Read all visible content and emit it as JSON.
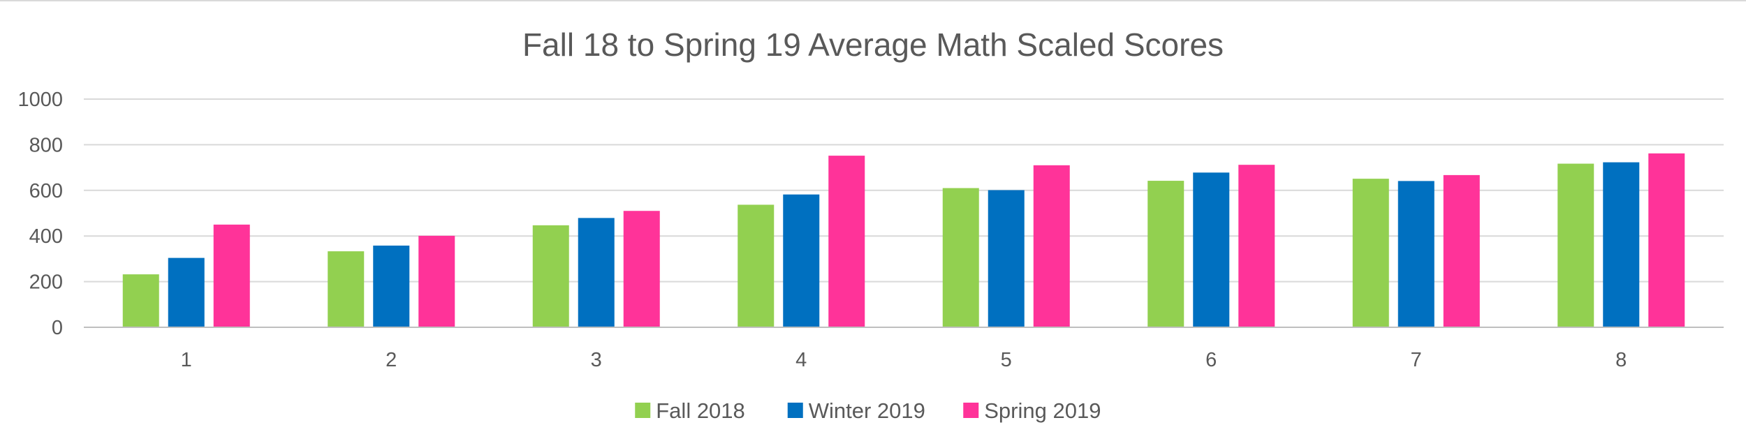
{
  "chart_data": {
    "type": "bar",
    "title": "Fall 18 to Spring 19 Average Math Scaled Scores",
    "xlabel": "",
    "ylabel": "",
    "categories": [
      "1",
      "2",
      "3",
      "4",
      "5",
      "6",
      "7",
      "8"
    ],
    "y_ticks": [
      "0",
      "200",
      "400",
      "600",
      "800",
      "1000"
    ],
    "ylim": [
      0,
      1000
    ],
    "grid": true,
    "legend_position": "bottom",
    "series": [
      {
        "name": "Fall 2018",
        "color": "#92d050",
        "values": [
          232,
          333,
          447,
          537,
          610,
          642,
          651,
          717
        ]
      },
      {
        "name": "Winter 2019",
        "color": "#0070c0",
        "values": [
          304,
          358,
          479,
          582,
          601,
          678,
          641,
          723
        ]
      },
      {
        "name": "Spring 2019",
        "color": "#ff3399",
        "values": [
          450,
          401,
          510,
          752,
          710,
          712,
          667,
          762
        ]
      }
    ]
  }
}
